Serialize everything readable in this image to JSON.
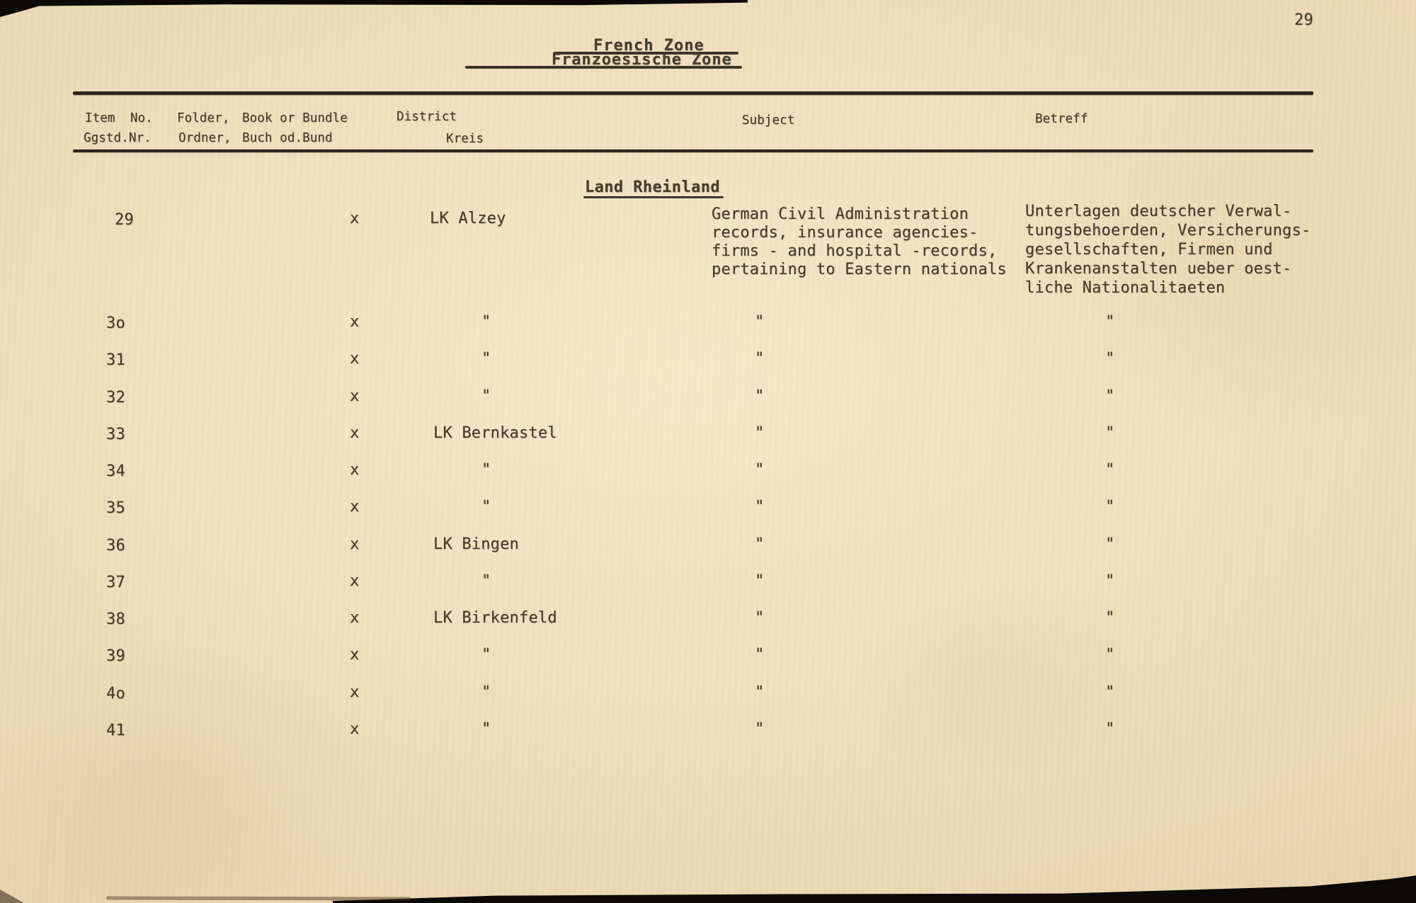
{
  "colors": {
    "paper": "#ecdab6",
    "ink": "#473d2f",
    "rule": "#2d261d",
    "edge": "#0c0a07"
  },
  "page": {
    "number": "29",
    "title_line1": "French Zone",
    "title_line2": "Franzoesische Zone",
    "section_heading": "Land Rheinland"
  },
  "table": {
    "headers": {
      "item_no_en": "Item  No.",
      "item_no_de": "Ggstd.Nr.",
      "folder_en": "Folder,",
      "folder_de": "Ordner,",
      "book_en": "Book or Bundle",
      "book_de": "Buch od.Bund",
      "district_en": "District",
      "district_de": "Kreis",
      "subject_en": "Subject",
      "subject_de": "Betreff"
    },
    "rows": [
      {
        "item": "29",
        "folder": "",
        "book": "x",
        "district": "LK Alzey",
        "subject": "German Civil Administration\nrecords, insurance agencies-\nfirms - and hospital -records,\npertaining to Eastern nationals",
        "betreff": "Unterlagen deutscher Verwal-\ntungsbehoerden, Versicherungs-\ngesellschaften, Firmen und\nKrankenanstalten ueber oest-\nliche Nationalitaeten"
      },
      {
        "item": "3o",
        "folder": "",
        "book": "x",
        "district": "\"",
        "subject": "\"",
        "betreff": "\""
      },
      {
        "item": "31",
        "folder": "",
        "book": "x",
        "district": "\"",
        "subject": "\"",
        "betreff": "\""
      },
      {
        "item": "32",
        "folder": "",
        "book": "x",
        "district": "\"",
        "subject": "\"",
        "betreff": "\""
      },
      {
        "item": "33",
        "folder": "",
        "book": "x",
        "district": "LK Bernkastel",
        "subject": "\"",
        "betreff": "\""
      },
      {
        "item": "34",
        "folder": "",
        "book": "x",
        "district": "\"",
        "subject": "\"",
        "betreff": "\""
      },
      {
        "item": "35",
        "folder": "",
        "book": "x",
        "district": "\"",
        "subject": "\"",
        "betreff": "\""
      },
      {
        "item": "36",
        "folder": "",
        "book": "x",
        "district": "LK Bingen",
        "subject": "\"",
        "betreff": "\""
      },
      {
        "item": "37",
        "folder": "",
        "book": "x",
        "district": "\"",
        "subject": "\"",
        "betreff": "\""
      },
      {
        "item": "38",
        "folder": "",
        "book": "x",
        "district": "LK Birkenfeld",
        "subject": "\"",
        "betreff": "\""
      },
      {
        "item": "39",
        "folder": "",
        "book": "x",
        "district": "\"",
        "subject": "\"",
        "betreff": "\""
      },
      {
        "item": "4o",
        "folder": "",
        "book": "x",
        "district": "\"",
        "subject": "\"",
        "betreff": "\""
      },
      {
        "item": "41",
        "folder": "",
        "book": "x",
        "district": "\"",
        "subject": "\"",
        "betreff": "\""
      }
    ]
  }
}
